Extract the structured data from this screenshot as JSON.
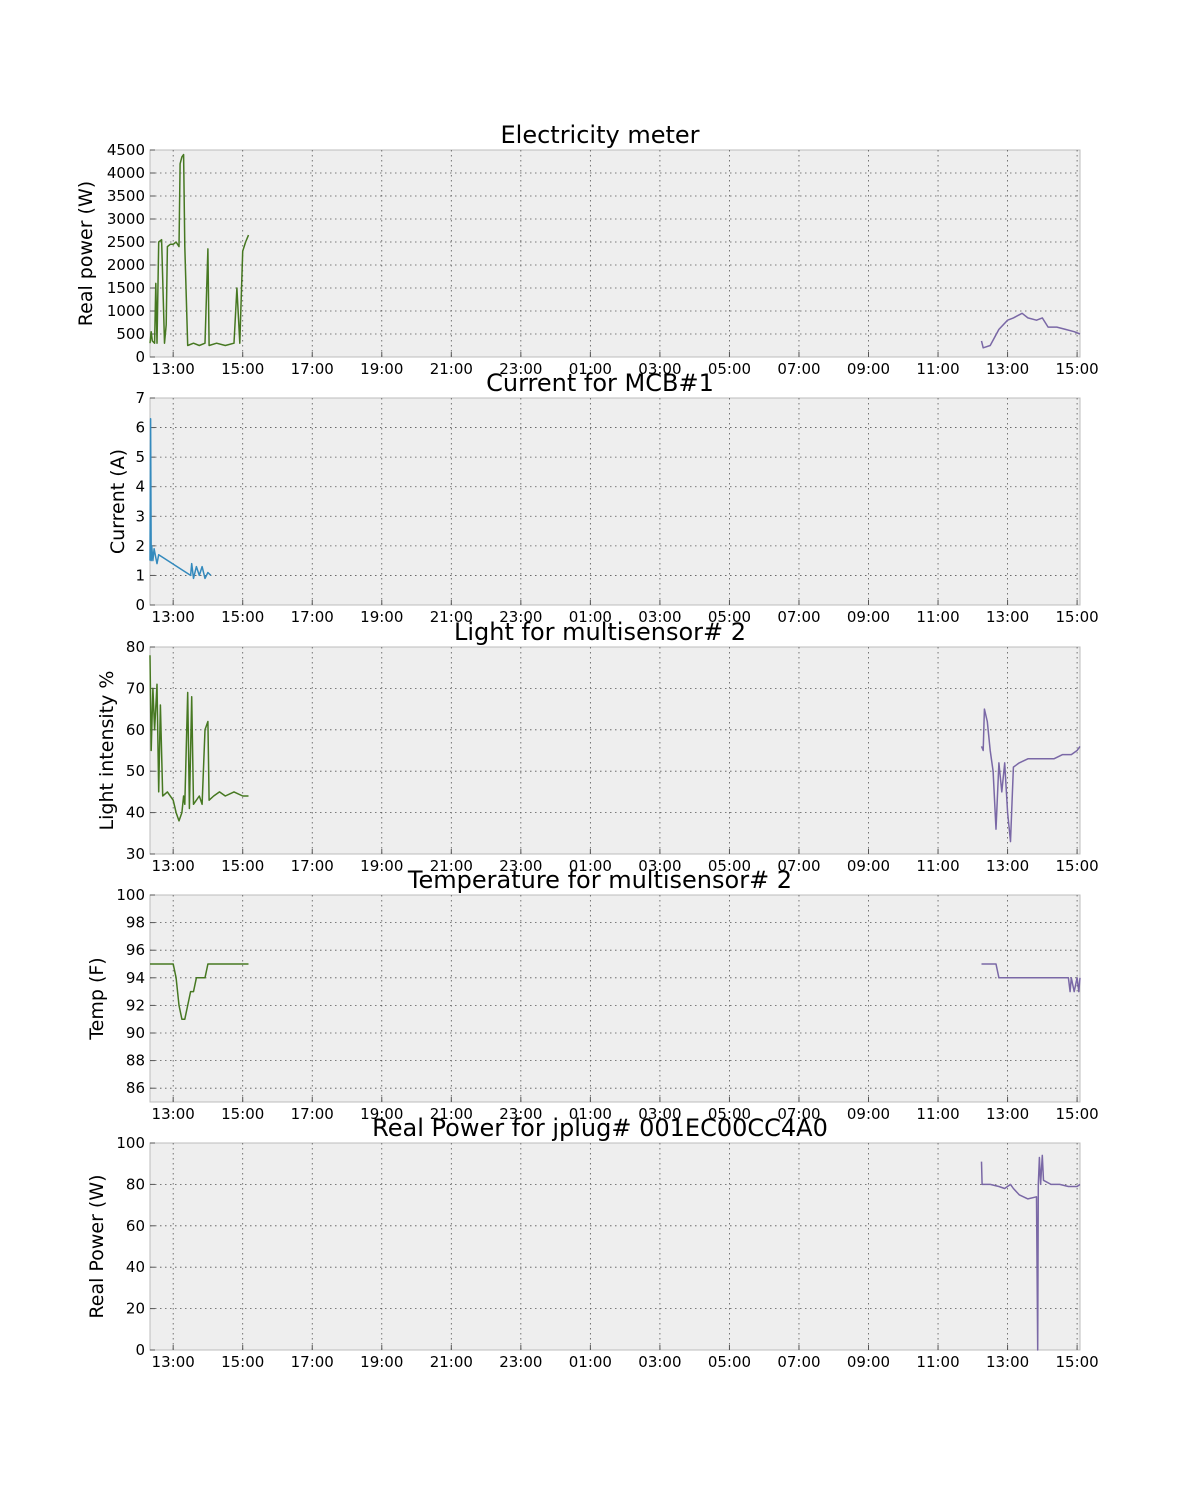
{
  "chart_data": [
    {
      "type": "line",
      "title": "Electricity meter",
      "ylabel": "Real power (W)",
      "xlabel": "",
      "ylim": [
        0,
        4500
      ],
      "yticks": [
        0,
        500,
        1000,
        1500,
        2000,
        2500,
        3000,
        3500,
        4000,
        4500
      ],
      "ytick_labels": [
        "0",
        "500",
        "1000",
        "1500",
        "2000",
        "2500",
        "3000",
        "3500",
        "4000",
        "4500"
      ],
      "xlim": [
        "12:20",
        "15:05 (+1 day)"
      ],
      "xtick_labels": [
        "13:00",
        "15:00",
        "17:00",
        "19:00",
        "21:00",
        "23:00",
        "01:00",
        "03:00",
        "05:00",
        "07:00",
        "09:00",
        "11:00",
        "13:00",
        "15:00"
      ],
      "grid": true,
      "series": [
        {
          "color": "#467821",
          "points": [
            [
              "12:20",
              300
            ],
            [
              "12:22",
              550
            ],
            [
              "12:24",
              350
            ],
            [
              "12:28",
              300
            ],
            [
              "12:30",
              1600
            ],
            [
              "12:32",
              300
            ],
            [
              "12:35",
              2500
            ],
            [
              "12:40",
              2550
            ],
            [
              "12:45",
              300
            ],
            [
              "12:48",
              700
            ],
            [
              "12:50",
              2400
            ],
            [
              "12:55",
              2450
            ],
            [
              "13:00",
              2450
            ],
            [
              "13:05",
              2500
            ],
            [
              "13:10",
              2400
            ],
            [
              "13:12",
              4200
            ],
            [
              "13:15",
              4350
            ],
            [
              "13:18",
              4400
            ],
            [
              "13:20",
              2400
            ],
            [
              "13:25",
              250
            ],
            [
              "13:35",
              300
            ],
            [
              "13:45",
              250
            ],
            [
              "13:55",
              300
            ],
            [
              "14:00",
              2350
            ],
            [
              "14:02",
              250
            ],
            [
              "14:15",
              300
            ],
            [
              "14:30",
              250
            ],
            [
              "14:45",
              300
            ],
            [
              "14:50",
              1500
            ],
            [
              "14:55",
              300
            ],
            [
              "15:00",
              2300
            ],
            [
              "15:05",
              2500
            ],
            [
              "15:10",
              2650
            ]
          ]
        },
        {
          "color": "#7a68a6",
          "points": [
            [
              "12:15",
              350
            ],
            [
              "12:18",
              200
            ],
            [
              "12:30",
              250
            ],
            [
              "12:45",
              600
            ],
            [
              "13:00",
              800
            ],
            [
              "13:10",
              850
            ],
            [
              "13:25",
              950
            ],
            [
              "13:35",
              850
            ],
            [
              "13:50",
              800
            ],
            [
              "14:00",
              850
            ],
            [
              "14:10",
              650
            ],
            [
              "14:25",
              650
            ],
            [
              "14:40",
              600
            ],
            [
              "14:55",
              550
            ],
            [
              "15:05",
              500
            ]
          ]
        }
      ]
    },
    {
      "type": "line",
      "title": "Current for MCB#1",
      "ylabel": "Current (A)",
      "xlabel": "",
      "ylim": [
        0,
        7
      ],
      "yticks": [
        0,
        1,
        2,
        3,
        4,
        5,
        6,
        7
      ],
      "ytick_labels": [
        "0",
        "1",
        "2",
        "3",
        "4",
        "5",
        "6",
        "7"
      ],
      "xlim": [
        "12:20",
        "15:05 (+1 day)"
      ],
      "xtick_labels": [
        "13:00",
        "15:00",
        "17:00",
        "19:00",
        "21:00",
        "23:00",
        "01:00",
        "03:00",
        "05:00",
        "07:00",
        "09:00",
        "11:00",
        "13:00",
        "15:00"
      ],
      "grid": true,
      "series": [
        {
          "color": "#348abd",
          "points": [
            [
              "12:20",
              1.5
            ],
            [
              "12:21",
              6.3
            ],
            [
              "12:22",
              1.5
            ],
            [
              "12:23",
              2.0
            ],
            [
              "12:25",
              1.5
            ],
            [
              "12:27",
              1.9
            ],
            [
              "12:30",
              1.6
            ],
            [
              "12:32",
              1.4
            ],
            [
              "12:35",
              1.7
            ],
            [
              "13:30",
              1.0
            ],
            [
              "13:32",
              1.4
            ],
            [
              "13:35",
              0.9
            ],
            [
              "13:40",
              1.3
            ],
            [
              "13:45",
              1.0
            ],
            [
              "13:50",
              1.3
            ],
            [
              "13:55",
              0.9
            ],
            [
              "14:00",
              1.1
            ],
            [
              "14:05",
              1.0
            ]
          ]
        }
      ]
    },
    {
      "type": "line",
      "title": "Light for multisensor# 2",
      "ylabel": "Light intensity %",
      "xlabel": "",
      "ylim": [
        30,
        80
      ],
      "yticks": [
        30,
        40,
        50,
        60,
        70,
        80
      ],
      "ytick_labels": [
        "30",
        "40",
        "50",
        "60",
        "70",
        "80"
      ],
      "xlim": [
        "12:20",
        "15:05 (+1 day)"
      ],
      "xtick_labels": [
        "13:00",
        "15:00",
        "17:00",
        "19:00",
        "21:00",
        "23:00",
        "01:00",
        "03:00",
        "05:00",
        "07:00",
        "09:00",
        "11:00",
        "13:00",
        "15:00"
      ],
      "grid": true,
      "series": [
        {
          "color": "#467821",
          "points": [
            [
              "12:20",
              78
            ],
            [
              "12:22",
              55
            ],
            [
              "12:25",
              70
            ],
            [
              "12:28",
              60
            ],
            [
              "12:32",
              71
            ],
            [
              "12:35",
              45
            ],
            [
              "12:38",
              66
            ],
            [
              "12:42",
              44
            ],
            [
              "12:50",
              45
            ],
            [
              "13:00",
              43
            ],
            [
              "13:05",
              40
            ],
            [
              "13:10",
              38
            ],
            [
              "13:15",
              40
            ],
            [
              "13:18",
              44
            ],
            [
              "13:20",
              42
            ],
            [
              "13:25",
              69
            ],
            [
              "13:28",
              41
            ],
            [
              "13:32",
              68
            ],
            [
              "13:35",
              42
            ],
            [
              "13:45",
              44
            ],
            [
              "13:50",
              42
            ],
            [
              "13:55",
              60
            ],
            [
              "14:00",
              62
            ],
            [
              "14:02",
              43
            ],
            [
              "14:10",
              44
            ],
            [
              "14:20",
              45
            ],
            [
              "14:30",
              44
            ],
            [
              "14:45",
              45
            ],
            [
              "15:00",
              44
            ],
            [
              "15:10",
              44
            ]
          ]
        },
        {
          "color": "#7a68a6",
          "points": [
            [
              "12:15",
              56
            ],
            [
              "12:18",
              55
            ],
            [
              "12:20",
              65
            ],
            [
              "12:25",
              62
            ],
            [
              "12:30",
              55
            ],
            [
              "12:35",
              50
            ],
            [
              "12:40",
              36
            ],
            [
              "12:45",
              52
            ],
            [
              "12:50",
              45
            ],
            [
              "12:55",
              52
            ],
            [
              "13:00",
              40
            ],
            [
              "13:05",
              33
            ],
            [
              "13:10",
              51
            ],
            [
              "13:20",
              52
            ],
            [
              "13:35",
              53
            ],
            [
              "13:50",
              53
            ],
            [
              "14:05",
              53
            ],
            [
              "14:20",
              53
            ],
            [
              "14:35",
              54
            ],
            [
              "14:50",
              54
            ],
            [
              "15:00",
              55
            ],
            [
              "15:05",
              56
            ]
          ]
        }
      ]
    },
    {
      "type": "line",
      "title": "Temperature for multisensor# 2",
      "ylabel": "Temp (F)",
      "xlabel": "",
      "ylim": [
        85,
        100
      ],
      "yticks": [
        86,
        88,
        90,
        92,
        94,
        96,
        98,
        100
      ],
      "ytick_labels": [
        "86",
        "88",
        "90",
        "92",
        "94",
        "96",
        "98",
        "100"
      ],
      "xlim": [
        "12:20",
        "15:05 (+1 day)"
      ],
      "xtick_labels": [
        "13:00",
        "15:00",
        "17:00",
        "19:00",
        "21:00",
        "23:00",
        "01:00",
        "03:00",
        "05:00",
        "07:00",
        "09:00",
        "11:00",
        "13:00",
        "15:00"
      ],
      "grid": true,
      "series": [
        {
          "color": "#467821",
          "points": [
            [
              "12:20",
              95
            ],
            [
              "13:00",
              95
            ],
            [
              "13:05",
              94
            ],
            [
              "13:10",
              92
            ],
            [
              "13:15",
              91
            ],
            [
              "13:20",
              91
            ],
            [
              "13:25",
              92
            ],
            [
              "13:30",
              93
            ],
            [
              "13:35",
              93
            ],
            [
              "13:40",
              94
            ],
            [
              "13:55",
              94
            ],
            [
              "14:00",
              95
            ],
            [
              "14:30",
              95
            ],
            [
              "15:10",
              95
            ]
          ]
        },
        {
          "color": "#7a68a6",
          "points": [
            [
              "12:15",
              95
            ],
            [
              "12:40",
              95
            ],
            [
              "12:45",
              94
            ],
            [
              "13:30",
              94
            ],
            [
              "14:20",
              94
            ],
            [
              "14:45",
              94
            ],
            [
              "14:48",
              93
            ],
            [
              "14:50",
              94
            ],
            [
              "14:55",
              93
            ],
            [
              "15:00",
              94
            ],
            [
              "15:03",
              93
            ],
            [
              "15:05",
              94
            ]
          ]
        }
      ]
    },
    {
      "type": "line",
      "title": "Real Power for jplug# 001EC00CC4A0",
      "ylabel": "Real Power (W)",
      "xlabel": "",
      "ylim": [
        0,
        100
      ],
      "yticks": [
        0,
        20,
        40,
        60,
        80,
        100
      ],
      "ytick_labels": [
        "0",
        "20",
        "40",
        "60",
        "80",
        "100"
      ],
      "xlim": [
        "12:20",
        "15:05 (+1 day)"
      ],
      "xtick_labels": [
        "13:00",
        "15:00",
        "17:00",
        "19:00",
        "21:00",
        "23:00",
        "01:00",
        "03:00",
        "05:00",
        "07:00",
        "09:00",
        "11:00",
        "13:00",
        "15:00"
      ],
      "grid": true,
      "series": [
        {
          "color": "#7a68a6",
          "points": [
            [
              "12:15",
              91
            ],
            [
              "12:16",
              80
            ],
            [
              "12:30",
              80
            ],
            [
              "12:45",
              79
            ],
            [
              "12:55",
              78
            ],
            [
              "13:05",
              80
            ],
            [
              "13:10",
              78
            ],
            [
              "13:20",
              75
            ],
            [
              "13:35",
              73
            ],
            [
              "13:50",
              74
            ],
            [
              "13:52",
              0
            ],
            [
              "13:53",
              80
            ],
            [
              "13:55",
              93
            ],
            [
              "13:57",
              80
            ],
            [
              "14:00",
              94
            ],
            [
              "14:02",
              82
            ],
            [
              "14:15",
              80
            ],
            [
              "14:30",
              80
            ],
            [
              "14:45",
              79
            ],
            [
              "15:00",
              79
            ],
            [
              "15:05",
              80
            ]
          ]
        }
      ]
    }
  ]
}
